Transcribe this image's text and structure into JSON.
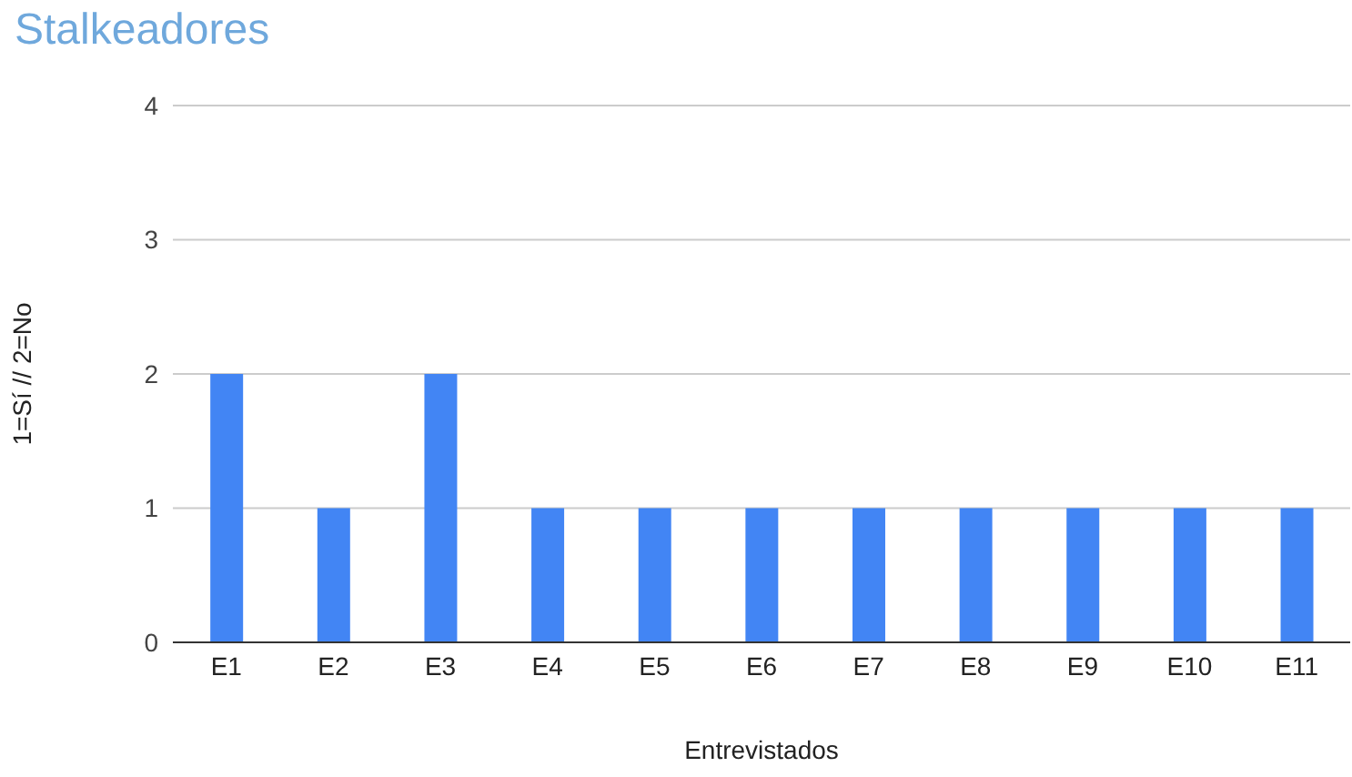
{
  "chart_data": {
    "type": "bar",
    "title": "Stalkeadores",
    "xlabel": "Entrevistados",
    "ylabel": "1=Sí // 2=No",
    "categories": [
      "E1",
      "E2",
      "E3",
      "E4",
      "E5",
      "E6",
      "E7",
      "E8",
      "E9",
      "E10",
      "E11"
    ],
    "values": [
      2,
      1,
      2,
      1,
      1,
      1,
      1,
      1,
      1,
      1,
      1
    ],
    "color": "#4285f4",
    "ylim": [
      0,
      4
    ],
    "yticks": [
      0,
      1,
      2,
      3,
      4
    ],
    "grid": "y"
  }
}
